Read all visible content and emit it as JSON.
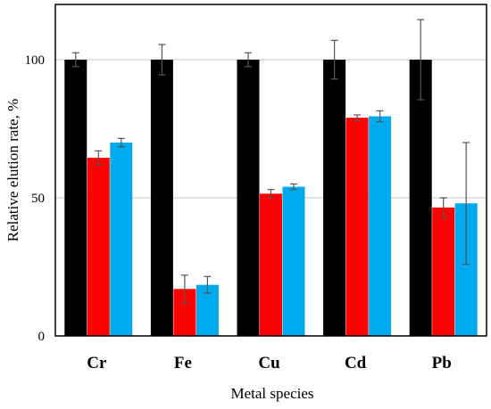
{
  "chart_data": {
    "type": "bar",
    "title": "",
    "xlabel": "Metal species",
    "ylabel": "Relative elution rate, %",
    "categories": [
      "Cr",
      "Fe",
      "Cu",
      "Cd",
      "Pb"
    ],
    "ylim": [
      0,
      120
    ],
    "yticks": [
      0,
      50,
      100
    ],
    "grid": "horizontal",
    "legend": "none",
    "series": [
      {
        "color": "#000000",
        "values": [
          100,
          100,
          100,
          100,
          100
        ],
        "errors": [
          2.5,
          5.5,
          2.5,
          7,
          14.5
        ]
      },
      {
        "color": "#ff0000",
        "values": [
          64.5,
          17,
          51.5,
          79,
          46.5
        ],
        "errors": [
          2.5,
          5,
          1.5,
          1,
          3.5
        ]
      },
      {
        "color": "#00aaee",
        "values": [
          70,
          18.5,
          54,
          79.5,
          48
        ],
        "errors": [
          1.5,
          3,
          1,
          2,
          22
        ]
      }
    ]
  }
}
